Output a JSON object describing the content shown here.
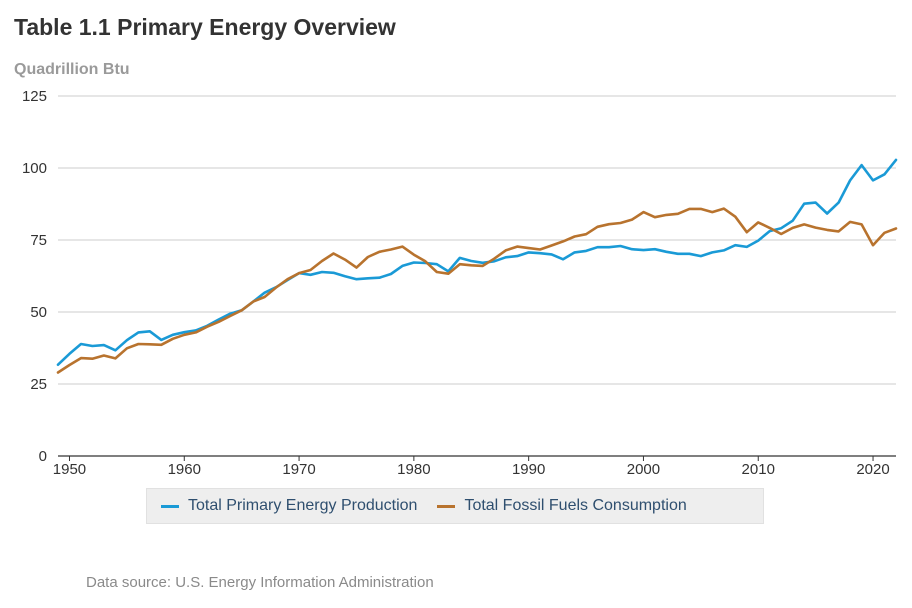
{
  "title": "Table 1.1 Primary Energy Overview",
  "source": "Data source: U.S. Energy Information Administration",
  "colors": {
    "production": "#1a9ad6",
    "consumption": "#b8732e",
    "grid": "#cccccc",
    "axis": "#333333"
  },
  "chart_data": {
    "type": "line",
    "title": "Table 1.1 Primary Energy Overview",
    "ylabel": "Quadrillion Btu",
    "xlabel": "",
    "xlim": [
      1949,
      2022
    ],
    "ylim": [
      0,
      125
    ],
    "x_ticks": [
      1950,
      1960,
      1970,
      1980,
      1990,
      2000,
      2010,
      2020
    ],
    "y_ticks": [
      0,
      25,
      50,
      75,
      100,
      125
    ],
    "grid": "horizontal",
    "legend_position": "bottom",
    "x": [
      1949,
      1950,
      1951,
      1952,
      1953,
      1954,
      1955,
      1956,
      1957,
      1958,
      1959,
      1960,
      1961,
      1962,
      1963,
      1964,
      1965,
      1966,
      1967,
      1968,
      1969,
      1970,
      1971,
      1972,
      1973,
      1974,
      1975,
      1976,
      1977,
      1978,
      1979,
      1980,
      1981,
      1982,
      1983,
      1984,
      1985,
      1986,
      1987,
      1988,
      1989,
      1990,
      1991,
      1992,
      1993,
      1994,
      1995,
      1996,
      1997,
      1998,
      1999,
      2000,
      2001,
      2002,
      2003,
      2004,
      2005,
      2006,
      2007,
      2008,
      2009,
      2010,
      2011,
      2012,
      2013,
      2014,
      2015,
      2016,
      2017,
      2018,
      2019,
      2020,
      2021,
      2022
    ],
    "series": [
      {
        "name": "Total Primary Energy Production",
        "values": [
          31.7,
          35.5,
          38.9,
          38.2,
          38.5,
          36.7,
          40.2,
          42.9,
          43.3,
          40.3,
          42.1,
          43.0,
          43.6,
          45.2,
          47.4,
          49.4,
          50.6,
          53.6,
          56.7,
          58.6,
          61.1,
          63.5,
          62.9,
          63.9,
          63.6,
          62.4,
          61.4,
          61.7,
          61.9,
          63.2,
          66.0,
          67.2,
          67.0,
          66.6,
          64.1,
          68.8,
          67.7,
          67.1,
          67.6,
          69.0,
          69.4,
          70.7,
          70.4,
          70.0,
          68.3,
          70.7,
          71.2,
          72.5,
          72.5,
          72.9,
          71.8,
          71.5,
          71.8,
          70.9,
          70.2,
          70.2,
          69.4,
          70.7,
          71.4,
          73.2,
          72.6,
          74.8,
          78.1,
          79.1,
          81.7,
          87.6,
          88.0,
          84.2,
          88.0,
          95.7,
          101.0,
          95.7,
          97.8,
          102.8
        ]
      },
      {
        "name": "Total Fossil Fuels Consumption",
        "values": [
          29.0,
          31.6,
          34.0,
          33.8,
          34.9,
          33.9,
          37.4,
          38.9,
          38.8,
          38.6,
          40.7,
          42.1,
          42.9,
          44.9,
          46.6,
          48.6,
          50.6,
          53.6,
          55.2,
          58.5,
          61.4,
          63.5,
          64.6,
          67.7,
          70.3,
          68.2,
          65.4,
          69.1,
          70.9,
          71.7,
          72.7,
          69.9,
          67.6,
          63.9,
          63.3,
          66.6,
          66.2,
          66.0,
          68.5,
          71.4,
          72.7,
          72.2,
          71.7,
          73.1,
          74.5,
          76.2,
          77.0,
          79.6,
          80.5,
          80.9,
          82.1,
          84.7,
          82.9,
          83.7,
          84.1,
          85.8,
          85.8,
          84.7,
          85.9,
          83.1,
          77.7,
          81.1,
          79.2,
          77.1,
          79.2,
          80.4,
          79.3,
          78.5,
          78.0,
          81.3,
          80.4,
          73.2,
          77.5,
          79.0
        ]
      }
    ]
  }
}
